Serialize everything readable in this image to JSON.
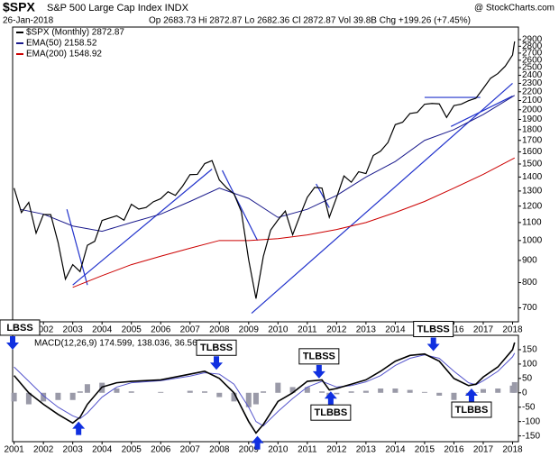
{
  "header": {
    "symbol": "$SPX",
    "name": "S&P 500 Large Cap Index INDX",
    "date": "26-Jan-2018",
    "quote": "Op 2683.73 Hi 2872.87 Lo 2682.36 Cl 2872.87 Vol 39.8B Chg +199.26 (+7.45%)",
    "credit": "@ StockCharts.com"
  },
  "chart_data": [
    {
      "type": "line",
      "log_scale": true,
      "xlim": [
        2000.95,
        2018.2
      ],
      "ylim": [
        650,
        3100
      ],
      "xticks": [
        2001,
        2002,
        2003,
        2004,
        2005,
        2006,
        2007,
        2008,
        2009,
        2010,
        2011,
        2012,
        2013,
        2014,
        2015,
        2016,
        2017,
        2018
      ],
      "yticks": [
        700,
        800,
        900,
        1000,
        1100,
        1200,
        1300,
        1400,
        1500,
        1600,
        1700,
        1800,
        1900,
        2000,
        2100,
        2200,
        2300,
        2400,
        2500,
        2600,
        2700,
        2800,
        2900
      ],
      "series": [
        {
          "name": "$SPX (Monthly) 2872.87",
          "color": "#000000",
          "x": [
            2001.0,
            2001.25,
            2001.5,
            2001.75,
            2002.0,
            2002.25,
            2002.5,
            2002.75,
            2003.0,
            2003.25,
            2003.5,
            2003.75,
            2004.0,
            2004.25,
            2004.5,
            2004.75,
            2005.0,
            2005.25,
            2005.5,
            2005.75,
            2006.0,
            2006.25,
            2006.5,
            2006.75,
            2007.0,
            2007.25,
            2007.5,
            2007.75,
            2008.0,
            2008.25,
            2008.5,
            2008.75,
            2009.0,
            2009.25,
            2009.5,
            2009.75,
            2010.0,
            2010.25,
            2010.5,
            2010.75,
            2011.0,
            2011.25,
            2011.5,
            2011.75,
            2012.0,
            2012.25,
            2012.5,
            2012.75,
            2013.0,
            2013.25,
            2013.5,
            2013.75,
            2014.0,
            2014.25,
            2014.5,
            2014.75,
            2015.0,
            2015.25,
            2015.5,
            2015.75,
            2016.0,
            2016.25,
            2016.5,
            2016.75,
            2017.0,
            2017.25,
            2017.5,
            2017.75,
            2018.0,
            2018.07
          ],
          "values": [
            1320,
            1160,
            1224,
            1040,
            1148,
            1147,
            990,
            815,
            880,
            848,
            975,
            996,
            1112,
            1126,
            1140,
            1114,
            1212,
            1181,
            1191,
            1228,
            1248,
            1295,
            1270,
            1335,
            1418,
            1420,
            1503,
            1527,
            1378,
            1322,
            1280,
            1166,
            903,
            735,
            919,
            1057,
            1115,
            1169,
            1031,
            1141,
            1257,
            1325,
            1320,
            1131,
            1257,
            1408,
            1362,
            1440,
            1426,
            1569,
            1606,
            1681,
            1848,
            1872,
            1960,
            1972,
            2059,
            2068,
            2063,
            1920,
            2044,
            2060,
            2098,
            2126,
            2239,
            2363,
            2423,
            2519,
            2673,
            2872.87
          ]
        },
        {
          "name": "EMA(50) 2158.52",
          "color": "#1a1a8c",
          "x": [
            2001.2,
            2002,
            2003,
            2004,
            2005,
            2006,
            2007,
            2008,
            2009,
            2010,
            2011,
            2012,
            2013,
            2014,
            2015,
            2016,
            2017,
            2018.07
          ],
          "values": [
            1180,
            1150,
            1080,
            1050,
            1100,
            1150,
            1230,
            1320,
            1250,
            1130,
            1180,
            1270,
            1400,
            1520,
            1700,
            1800,
            1950,
            2158.52
          ]
        },
        {
          "name": "EMA(200) 1548.92",
          "color": "#cc0000",
          "x": [
            2003,
            2004,
            2005,
            2006,
            2007,
            2008,
            2009,
            2010,
            2011,
            2012,
            2013,
            2014,
            2015,
            2016,
            2017,
            2018.07
          ],
          "values": [
            780,
            830,
            880,
            920,
            960,
            1000,
            1000,
            1010,
            1030,
            1060,
            1100,
            1160,
            1230,
            1320,
            1420,
            1548.92
          ]
        }
      ],
      "trendlines": [
        [
          [
            2003.0,
            790
          ],
          [
            2007.75,
            1460
          ]
        ],
        [
          [
            2002.8,
            1180
          ],
          [
            2003.5,
            790
          ]
        ],
        [
          [
            2008.1,
            1450
          ],
          [
            2009.3,
            1000
          ]
        ],
        [
          [
            2009.1,
            680
          ],
          [
            2018.0,
            2300
          ]
        ],
        [
          [
            2015.9,
            1830
          ],
          [
            2018.0,
            2150
          ]
        ],
        [
          [
            2015.0,
            2135
          ],
          [
            2016.9,
            2135
          ]
        ],
        [
          [
            2011.3,
            1350
          ],
          [
            2011.75,
            1190
          ]
        ]
      ]
    },
    {
      "type": "macd",
      "legend": "MACD(12,26,9) 174.599, 138.036, 36.563",
      "xlim": [
        2000.95,
        2018.2
      ],
      "ylim": [
        -170,
        200
      ],
      "xticks": [
        2001,
        2002,
        2003,
        2004,
        2005,
        2006,
        2007,
        2008,
        2009,
        2010,
        2011,
        2012,
        2013,
        2014,
        2015,
        2016,
        2017,
        2018
      ],
      "yticks": [
        -150,
        -100,
        -50,
        0,
        50,
        100,
        150
      ],
      "x": [
        2001.0,
        2001.5,
        2002.0,
        2002.5,
        2003.0,
        2003.25,
        2003.5,
        2004.0,
        2004.5,
        2005.0,
        2006.0,
        2007.0,
        2007.5,
        2008.0,
        2008.5,
        2009.0,
        2009.25,
        2009.5,
        2010.0,
        2010.5,
        2011.0,
        2011.5,
        2011.75,
        2012.0,
        2012.5,
        2013.0,
        2013.5,
        2014.0,
        2014.5,
        2015.0,
        2015.5,
        2016.0,
        2016.5,
        2016.75,
        2017.0,
        2017.5,
        2018.0,
        2018.07
      ],
      "macd": {
        "color": "#000000",
        "values": [
          60,
          0,
          -40,
          -75,
          -105,
          -85,
          -40,
          20,
          35,
          40,
          45,
          65,
          75,
          50,
          0,
          -100,
          -140,
          -110,
          -30,
          0,
          40,
          45,
          10,
          15,
          30,
          45,
          75,
          110,
          130,
          135,
          110,
          50,
          25,
          30,
          55,
          90,
          150,
          175
        ]
      },
      "signal": {
        "color": "#5555cc",
        "values": [
          90,
          40,
          -10,
          -50,
          -80,
          -90,
          -70,
          -15,
          20,
          35,
          42,
          58,
          70,
          65,
          30,
          -50,
          -100,
          -115,
          -65,
          -20,
          20,
          40,
          30,
          20,
          25,
          38,
          60,
          95,
          120,
          132,
          120,
          75,
          35,
          28,
          42,
          75,
          125,
          138
        ]
      },
      "histogram": {
        "color": "#9a9aa8",
        "values": [
          -30,
          -40,
          -30,
          -25,
          -25,
          5,
          30,
          35,
          15,
          5,
          3,
          7,
          5,
          -15,
          -30,
          -50,
          -40,
          5,
          35,
          20,
          20,
          5,
          -20,
          -5,
          5,
          7,
          15,
          15,
          10,
          3,
          -10,
          -25,
          -10,
          2,
          13,
          15,
          25,
          37
        ]
      },
      "annotations": [
        {
          "text": "LBSS",
          "x": 2000.95,
          "y": 150,
          "arrow": "down"
        },
        {
          "x": 2003.2,
          "y": -100,
          "arrow": "up"
        },
        {
          "text": "TLBSS",
          "x": 2007.9,
          "y": 80,
          "arrow": "down"
        },
        {
          "x": 2009.3,
          "y": -150,
          "arrow": "up"
        },
        {
          "text": "TLBSS",
          "x": 2011.4,
          "y": 50,
          "arrow": "down"
        },
        {
          "text": "TLBBS",
          "x": 2011.8,
          "y": 5,
          "arrow": "up"
        },
        {
          "text": "TLBSS",
          "x": 2015.3,
          "y": 145,
          "arrow": "down"
        },
        {
          "text": "TLBBS",
          "x": 2016.6,
          "y": 15,
          "arrow": "up"
        }
      ]
    }
  ]
}
